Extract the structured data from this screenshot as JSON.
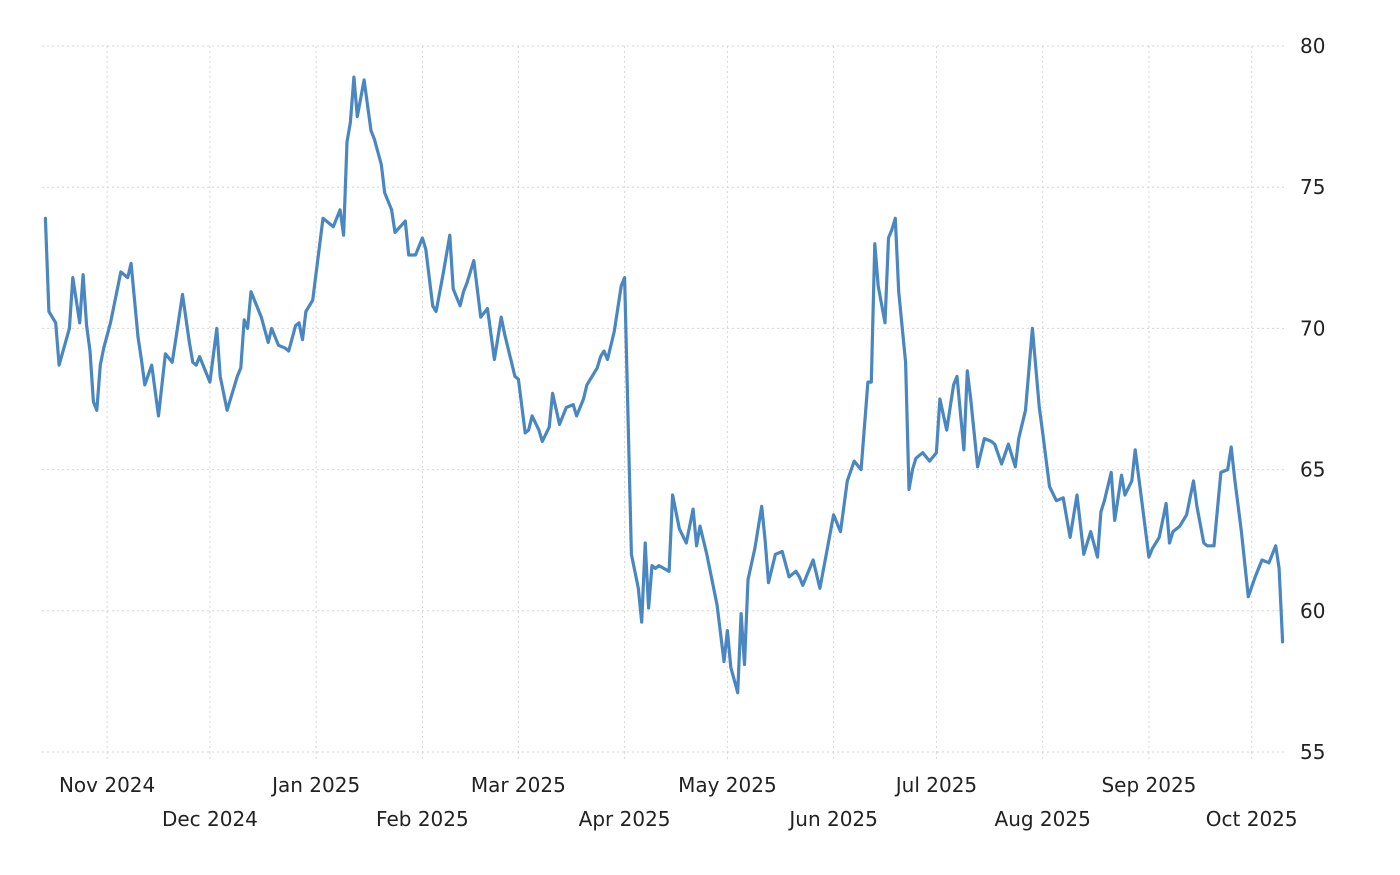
{
  "chart_data": {
    "type": "line",
    "grid": true,
    "legend": "none",
    "ylim": [
      55,
      80
    ],
    "y_ticks": [
      "55",
      "60",
      "65",
      "70",
      "75",
      "80"
    ],
    "y_axis_side": "right",
    "x_ticks": [
      {
        "label": "Nov 2024",
        "date": "2024-11-01",
        "row": 1
      },
      {
        "label": "Dec 2024",
        "date": "2024-12-01",
        "row": 2
      },
      {
        "label": "Jan 2025",
        "date": "2025-01-01",
        "row": 1
      },
      {
        "label": "Feb 2025",
        "date": "2025-02-01",
        "row": 2
      },
      {
        "label": "Mar 2025",
        "date": "2025-03-01",
        "row": 1
      },
      {
        "label": "Apr 2025",
        "date": "2025-04-01",
        "row": 2
      },
      {
        "label": "May 2025",
        "date": "2025-05-01",
        "row": 1
      },
      {
        "label": "Jun 2025",
        "date": "2025-06-01",
        "row": 2
      },
      {
        "label": "Jul 2025",
        "date": "2025-07-01",
        "row": 1
      },
      {
        "label": "Aug 2025",
        "date": "2025-08-01",
        "row": 2
      },
      {
        "label": "Sep 2025",
        "date": "2025-09-01",
        "row": 1
      },
      {
        "label": "Oct 2025",
        "date": "2025-10-01",
        "row": 2
      }
    ],
    "xlim": [
      "2024-10-13",
      "2025-10-11"
    ],
    "colors": {
      "series": "#4a87c0",
      "grid": "#d6d6d6",
      "text": "#222222"
    },
    "series": [
      {
        "x": [
          "2024-10-14",
          "2024-10-15",
          "2024-10-17",
          "2024-10-18",
          "2024-10-21",
          "2024-10-22",
          "2024-10-24",
          "2024-10-25",
          "2024-10-26",
          "2024-10-27",
          "2024-10-28",
          "2024-10-29",
          "2024-10-30",
          "2024-10-31",
          "2024-11-02",
          "2024-11-04",
          "2024-11-05",
          "2024-11-07",
          "2024-11-08",
          "2024-11-10",
          "2024-11-11",
          "2024-11-12",
          "2024-11-14",
          "2024-11-16",
          "2024-11-18",
          "2024-11-20",
          "2024-11-21",
          "2024-11-23",
          "2024-11-25",
          "2024-11-26",
          "2024-11-27",
          "2024-11-28",
          "2024-11-30",
          "2024-12-01",
          "2024-12-03",
          "2024-12-04",
          "2024-12-06",
          "2024-12-09",
          "2024-12-10",
          "2024-12-11",
          "2024-12-12",
          "2024-12-13",
          "2024-12-16",
          "2024-12-18",
          "2024-12-19",
          "2024-12-21",
          "2024-12-23",
          "2024-12-24",
          "2024-12-26",
          "2024-12-27",
          "2024-12-28",
          "2024-12-29",
          "2024-12-31",
          "2025-01-03",
          "2025-01-06",
          "2025-01-08",
          "2025-01-09",
          "2025-01-10",
          "2025-01-11",
          "2025-01-12",
          "2025-01-13",
          "2025-01-15",
          "2025-01-17",
          "2025-01-18",
          "2025-01-20",
          "2025-01-21",
          "2025-01-23",
          "2025-01-24",
          "2025-01-27",
          "2025-01-28",
          "2025-01-30",
          "2025-02-01",
          "2025-02-02",
          "2025-02-04",
          "2025-02-05",
          "2025-02-07",
          "2025-02-09",
          "2025-02-10",
          "2025-02-12",
          "2025-02-13",
          "2025-02-14",
          "2025-02-16",
          "2025-02-18",
          "2025-02-20",
          "2025-02-22",
          "2025-02-24",
          "2025-02-25",
          "2025-02-27",
          "2025-02-28",
          "2025-03-01",
          "2025-03-03",
          "2025-03-04",
          "2025-03-05",
          "2025-03-07",
          "2025-03-08",
          "2025-03-10",
          "2025-03-11",
          "2025-03-13",
          "2025-03-15",
          "2025-03-17",
          "2025-03-18",
          "2025-03-20",
          "2025-03-21",
          "2025-03-24",
          "2025-03-25",
          "2025-03-26",
          "2025-03-27",
          "2025-03-29",
          "2025-03-31",
          "2025-04-01",
          "2025-04-03",
          "2025-04-05",
          "2025-04-06",
          "2025-04-07",
          "2025-04-08",
          "2025-04-09",
          "2025-04-10",
          "2025-04-11",
          "2025-04-14",
          "2025-04-15",
          "2025-04-17",
          "2025-04-19",
          "2025-04-21",
          "2025-04-22",
          "2025-04-23",
          "2025-04-25",
          "2025-04-28",
          "2025-04-30",
          "2025-05-01",
          "2025-05-02",
          "2025-05-04",
          "2025-05-05",
          "2025-05-06",
          "2025-05-07",
          "2025-05-09",
          "2025-05-11",
          "2025-05-12",
          "2025-05-13",
          "2025-05-15",
          "2025-05-17",
          "2025-05-19",
          "2025-05-21",
          "2025-05-22",
          "2025-05-23",
          "2025-05-26",
          "2025-05-28",
          "2025-05-30",
          "2025-06-01",
          "2025-06-03",
          "2025-06-05",
          "2025-06-07",
          "2025-06-09",
          "2025-06-11",
          "2025-06-12",
          "2025-06-13",
          "2025-06-14",
          "2025-06-16",
          "2025-06-17",
          "2025-06-18",
          "2025-06-19",
          "2025-06-20",
          "2025-06-22",
          "2025-06-23",
          "2025-06-24",
          "2025-06-25",
          "2025-06-27",
          "2025-06-29",
          "2025-07-01",
          "2025-07-02",
          "2025-07-04",
          "2025-07-06",
          "2025-07-07",
          "2025-07-09",
          "2025-07-10",
          "2025-07-11",
          "2025-07-13",
          "2025-07-15",
          "2025-07-17",
          "2025-07-18",
          "2025-07-20",
          "2025-07-22",
          "2025-07-24",
          "2025-07-25",
          "2025-07-27",
          "2025-07-29",
          "2025-07-31",
          "2025-08-01",
          "2025-08-03",
          "2025-08-05",
          "2025-08-07",
          "2025-08-09",
          "2025-08-11",
          "2025-08-13",
          "2025-08-14",
          "2025-08-15",
          "2025-08-17",
          "2025-08-18",
          "2025-08-19",
          "2025-08-21",
          "2025-08-22",
          "2025-08-24",
          "2025-08-25",
          "2025-08-27",
          "2025-08-28",
          "2025-08-30",
          "2025-09-01",
          "2025-09-02",
          "2025-09-04",
          "2025-09-06",
          "2025-09-07",
          "2025-09-08",
          "2025-09-10",
          "2025-09-12",
          "2025-09-14",
          "2025-09-15",
          "2025-09-17",
          "2025-09-18",
          "2025-09-20",
          "2025-09-22",
          "2025-09-24",
          "2025-09-25",
          "2025-09-26",
          "2025-09-28",
          "2025-09-30",
          "2025-10-02",
          "2025-10-04",
          "2025-10-06",
          "2025-10-08",
          "2025-10-09",
          "2025-10-10"
        ],
        "values": [
          73.9,
          70.6,
          70.2,
          68.7,
          70.0,
          71.8,
          70.2,
          71.9,
          70.1,
          69.2,
          67.4,
          67.1,
          68.7,
          69.3,
          70.2,
          71.4,
          72.0,
          71.8,
          72.3,
          69.7,
          68.9,
          68.0,
          68.7,
          66.9,
          69.1,
          68.8,
          69.6,
          71.2,
          69.5,
          68.8,
          68.7,
          69.0,
          68.4,
          68.1,
          70.0,
          68.3,
          67.1,
          68.3,
          68.6,
          70.3,
          70.0,
          71.3,
          70.4,
          69.5,
          70.0,
          69.4,
          69.3,
          69.2,
          70.1,
          70.2,
          69.6,
          70.6,
          71.0,
          73.9,
          73.6,
          74.2,
          73.3,
          76.6,
          77.3,
          78.9,
          77.5,
          78.8,
          77.0,
          76.7,
          75.8,
          74.8,
          74.2,
          73.4,
          73.8,
          72.6,
          72.6,
          73.2,
          72.8,
          70.8,
          70.6,
          71.9,
          73.3,
          71.4,
          70.8,
          71.3,
          71.6,
          72.4,
          70.4,
          70.7,
          68.9,
          70.4,
          69.8,
          68.8,
          68.3,
          68.2,
          66.3,
          66.4,
          66.9,
          66.4,
          66.0,
          66.5,
          67.7,
          66.6,
          67.2,
          67.3,
          66.9,
          67.5,
          68.0,
          68.6,
          69.0,
          69.2,
          68.9,
          69.9,
          71.5,
          71.8,
          62.0,
          60.8,
          59.6,
          62.4,
          60.1,
          61.6,
          61.5,
          61.6,
          61.4,
          64.1,
          62.9,
          62.4,
          63.6,
          62.3,
          63.0,
          62.0,
          60.2,
          58.2,
          59.3,
          58.0,
          57.1,
          59.9,
          58.1,
          61.1,
          62.2,
          63.7,
          62.5,
          61.0,
          62.0,
          62.1,
          61.2,
          61.4,
          61.2,
          60.9,
          61.8,
          60.8,
          62.1,
          63.4,
          62.8,
          64.6,
          65.3,
          65.0,
          68.1,
          68.1,
          73.0,
          71.5,
          70.2,
          73.2,
          73.5,
          73.9,
          71.3,
          68.8,
          64.3,
          65.0,
          65.4,
          65.6,
          65.3,
          65.6,
          67.5,
          66.4,
          68.0,
          68.3,
          65.7,
          68.5,
          67.5,
          65.1,
          66.1,
          66.0,
          65.9,
          65.2,
          65.9,
          65.1,
          66.1,
          67.1,
          70.0,
          67.2,
          66.3,
          64.4,
          63.9,
          64.0,
          62.6,
          64.1,
          62.0,
          62.4,
          62.8,
          61.9,
          63.5,
          63.9,
          64.9,
          63.2,
          64.8,
          64.1,
          64.6,
          65.7,
          63.8,
          61.9,
          62.2,
          62.6,
          63.8,
          62.4,
          62.8,
          63.0,
          63.4,
          64.6,
          63.7,
          62.4,
          62.3,
          62.3,
          64.9,
          65.0,
          65.8,
          64.7,
          62.8,
          60.5,
          61.2,
          61.8,
          61.7,
          62.3,
          61.5,
          58.9
        ]
      }
    ]
  }
}
